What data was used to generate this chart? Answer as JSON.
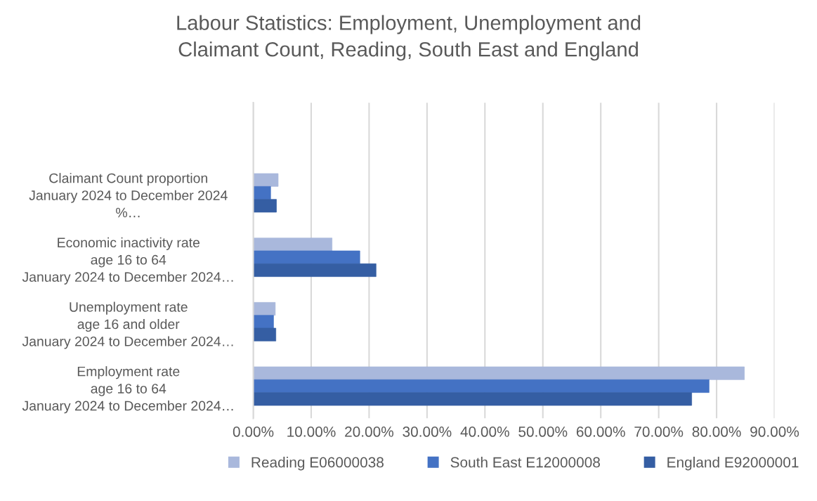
{
  "chart_data": {
    "type": "bar",
    "orientation": "horizontal",
    "title": "Labour Statistics: Employment, Unemployment and\nClaimant Count, Reading, South East and England",
    "categories": [
      "Claimant Count proportion\nJanuary 2024 to December 2024\n%…",
      "Economic inactivity rate\nage 16 to 64\nJanuary 2024 to December 2024…",
      "Unemployment rate\nage 16 and older\nJanuary 2024 to December 2024…",
      "Employment rate\nage 16 to 64\nJanuary 2024 to December 2024…"
    ],
    "series": [
      {
        "name": "Reading E06000038",
        "color": "#a9b8dc",
        "values": [
          4.3,
          13.6,
          3.8,
          84.8
        ]
      },
      {
        "name": "South East E12000008",
        "color": "#4472c4",
        "values": [
          3.0,
          18.4,
          3.5,
          78.7
        ]
      },
      {
        "name": "England E92000001",
        "color": "#355ea3",
        "values": [
          4.0,
          21.2,
          3.9,
          75.7
        ]
      }
    ],
    "xlim": [
      0,
      90
    ],
    "xticks": [
      {
        "value": 0,
        "label": "0.00%"
      },
      {
        "value": 10,
        "label": "10.00%"
      },
      {
        "value": 20,
        "label": "20.00%"
      },
      {
        "value": 30,
        "label": "30.00%"
      },
      {
        "value": 40,
        "label": "40.00%"
      },
      {
        "value": 50,
        "label": "50.00%"
      },
      {
        "value": 60,
        "label": "60.00%"
      },
      {
        "value": 70,
        "label": "70.00%"
      },
      {
        "value": 80,
        "label": "80.00%"
      },
      {
        "value": 90,
        "label": "90.00%"
      }
    ],
    "grid": "x",
    "legend": "bottom"
  }
}
